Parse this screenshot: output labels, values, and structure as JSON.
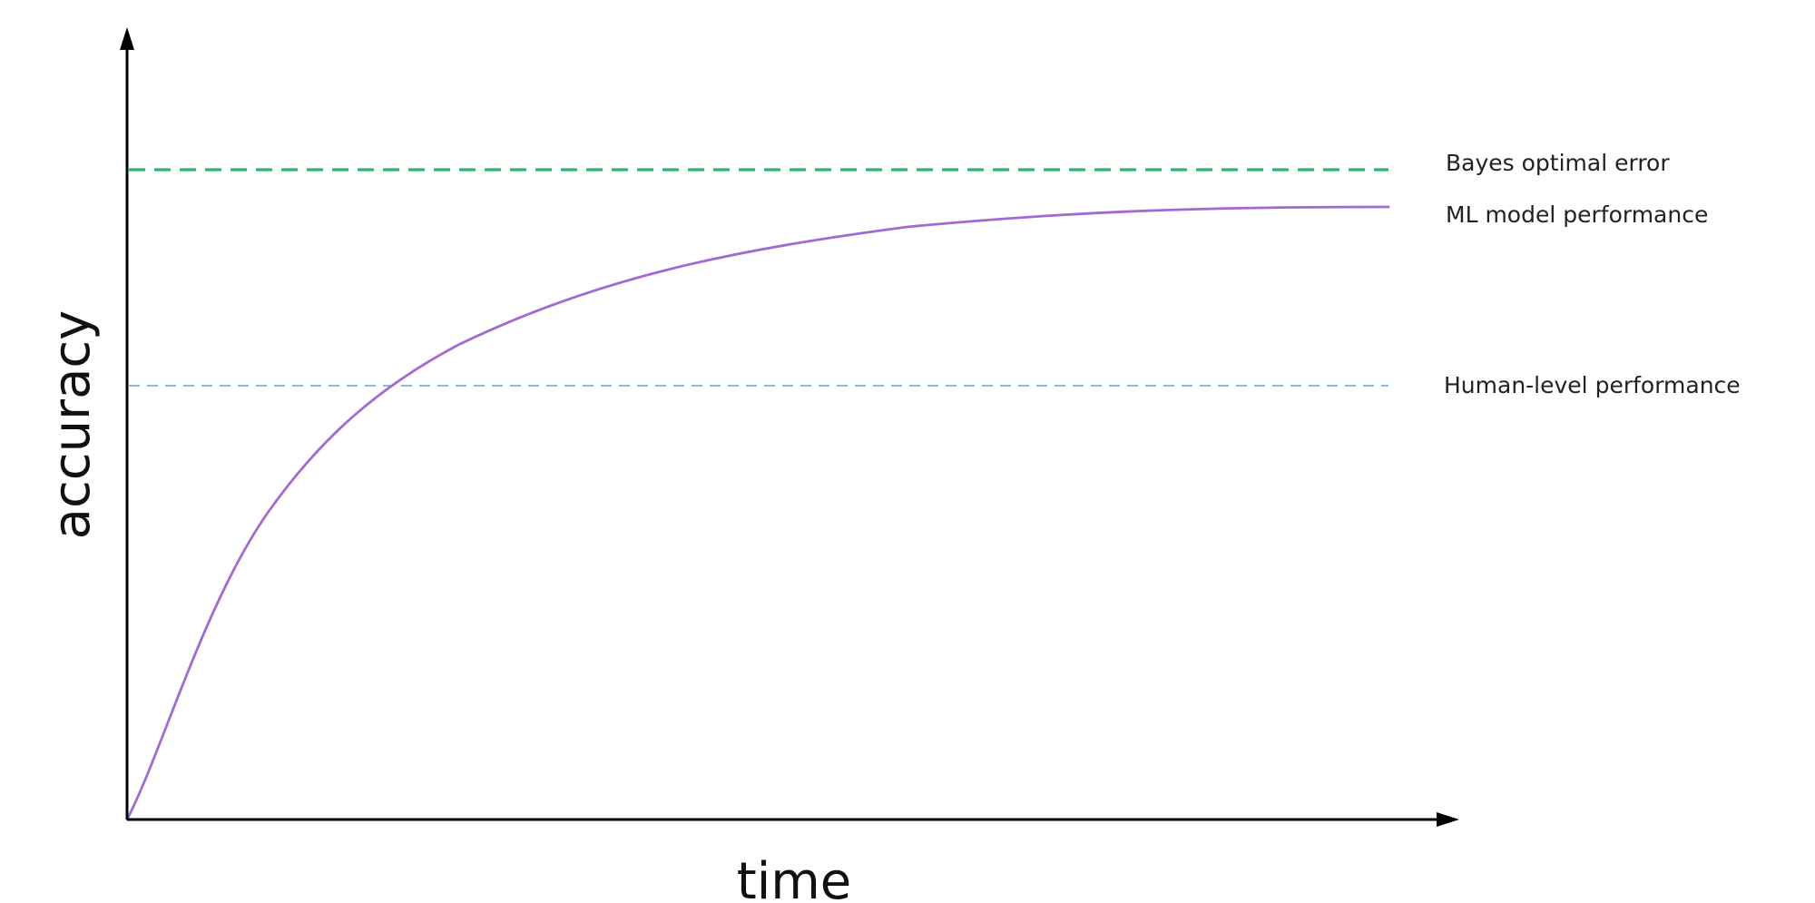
{
  "chart_data": {
    "type": "line",
    "title": "",
    "xlabel": "time",
    "ylabel": "accuracy",
    "x_tick_labels": [],
    "y_tick_labels": [],
    "grid": false,
    "legend": "none",
    "series": [
      {
        "name": "ML model performance",
        "color": "#a36ad6",
        "shape": "saturating curve rising from the origin, crossing human-level performance and approaching but staying below Bayes optimal error"
      }
    ],
    "reference_lines": [
      {
        "name": "Bayes optimal error",
        "color": "#2db56a",
        "style": "dashed"
      },
      {
        "name": "Human-level performance",
        "color": "#7aaed6",
        "style": "dashed"
      }
    ]
  }
}
